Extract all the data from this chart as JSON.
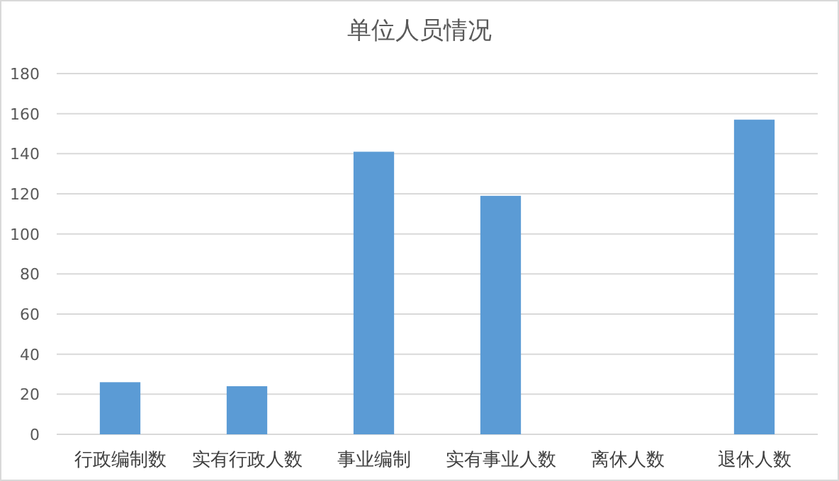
{
  "chart_data": {
    "type": "bar",
    "title": "单位人员情况",
    "categories": [
      "行政编制数",
      "实有行政人数",
      "事业编制",
      "实有事业人数",
      "离休人数",
      "退休人数"
    ],
    "values": [
      26,
      24,
      141,
      119,
      0,
      157
    ],
    "color": "#5b9bd5",
    "ylim": [
      0,
      180
    ],
    "yticks": [
      0,
      20,
      40,
      60,
      80,
      100,
      120,
      140,
      160,
      180
    ],
    "grid": "y"
  }
}
